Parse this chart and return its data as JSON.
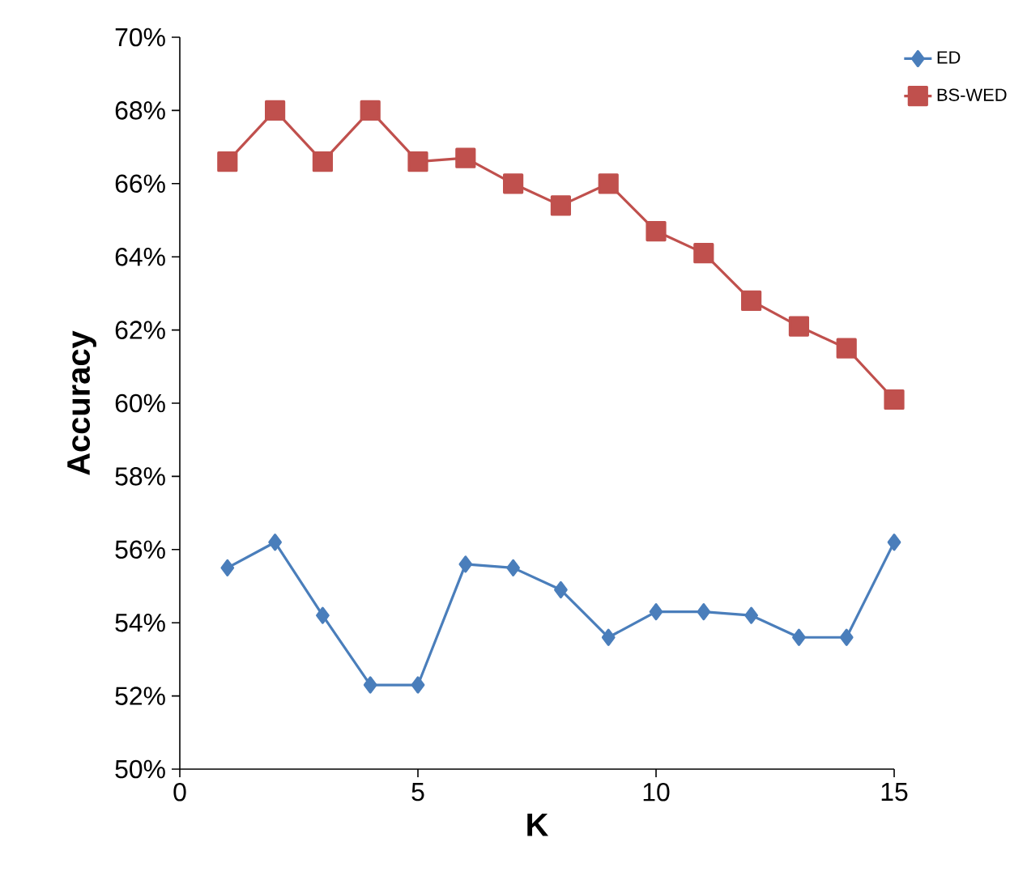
{
  "chart_data": {
    "type": "line",
    "xlabel": "K",
    "ylabel": "Accuracy",
    "x": [
      1,
      2,
      3,
      4,
      5,
      6,
      7,
      8,
      9,
      10,
      11,
      12,
      13,
      14,
      15
    ],
    "series": [
      {
        "name": "ED",
        "color": "#4a7ebb",
        "marker": "diamond",
        "values": [
          55.5,
          56.2,
          54.2,
          52.3,
          52.3,
          55.6,
          55.5,
          54.9,
          53.6,
          54.3,
          54.3,
          54.2,
          53.6,
          53.6,
          56.2
        ]
      },
      {
        "name": "BS-WED",
        "color": "#c0504d",
        "marker": "square",
        "values": [
          66.6,
          68.0,
          66.6,
          68.0,
          66.6,
          66.7,
          66.0,
          65.4,
          66.0,
          64.7,
          64.1,
          62.8,
          62.1,
          61.5,
          60.1
        ]
      }
    ],
    "xlim": [
      0,
      15
    ],
    "xticks": [
      0,
      5,
      10,
      15
    ],
    "ylim": [
      50,
      70
    ],
    "yticks": [
      {
        "value": 50,
        "label": "50%"
      },
      {
        "value": 52,
        "label": "52%"
      },
      {
        "value": 54,
        "label": "54%"
      },
      {
        "value": 56,
        "label": "56%"
      },
      {
        "value": 58,
        "label": "58%"
      },
      {
        "value": 60,
        "label": "60%"
      },
      {
        "value": 62,
        "label": "62%"
      },
      {
        "value": 64,
        "label": "64%"
      },
      {
        "value": 66,
        "label": "66%"
      },
      {
        "value": 68,
        "label": "68%"
      },
      {
        "value": 70,
        "label": "70%"
      }
    ],
    "legend": "top right",
    "grid": false
  }
}
